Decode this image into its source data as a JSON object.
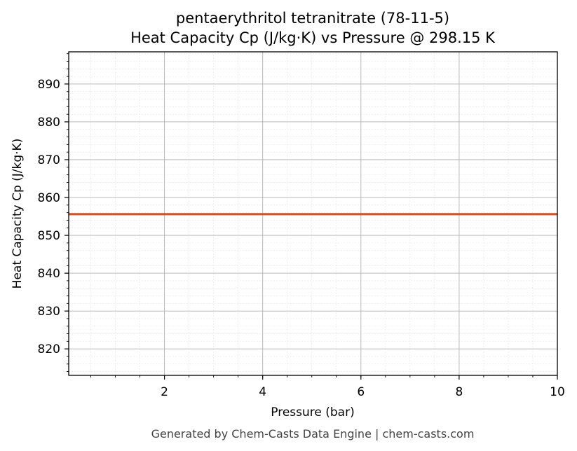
{
  "chart_data": {
    "type": "line",
    "title": "pentaerythritol tetranitrate (78-11-5)",
    "subtitle": "Heat Capacity Cp (J/kg·K) vs Pressure @ 298.15 K",
    "xlabel": "Pressure (bar)",
    "ylabel": "Heat Capacity Cp (J/kg·K)",
    "xlim": [
      0.05,
      10
    ],
    "ylim": [
      813,
      898.5
    ],
    "x_ticks": [
      2,
      4,
      6,
      8,
      10
    ],
    "y_ticks": [
      820,
      830,
      840,
      850,
      860,
      870,
      880,
      890
    ],
    "grid": true,
    "series": [
      {
        "color": "#c8552b",
        "x": [
          0.05,
          10
        ],
        "y": [
          855.6,
          855.6
        ]
      }
    ]
  },
  "footer": "Generated by Chem-Casts Data Engine | chem-casts.com"
}
